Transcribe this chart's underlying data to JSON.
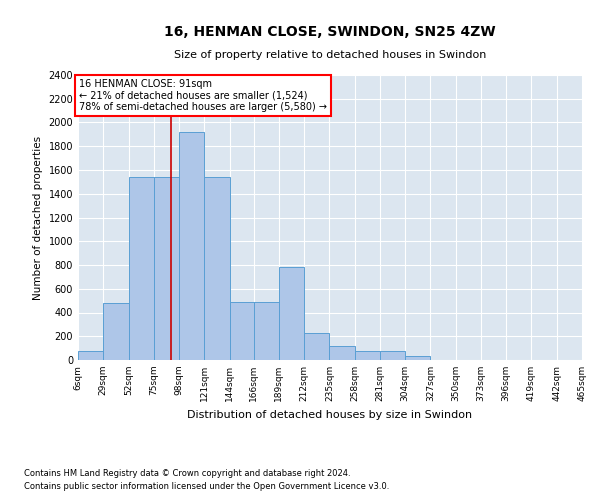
{
  "title": "16, HENMAN CLOSE, SWINDON, SN25 4ZW",
  "subtitle": "Size of property relative to detached houses in Swindon",
  "xlabel": "Distribution of detached houses by size in Swindon",
  "ylabel": "Number of detached properties",
  "footnote1": "Contains HM Land Registry data © Crown copyright and database right 2024.",
  "footnote2": "Contains public sector information licensed under the Open Government Licence v3.0.",
  "annotation_line1": "16 HENMAN CLOSE: 91sqm",
  "annotation_line2": "← 21% of detached houses are smaller (1,524)",
  "annotation_line3": "78% of semi-detached houses are larger (5,580) →",
  "property_size": 91,
  "bar_color": "#aec6e8",
  "bar_edge_color": "#5a9fd4",
  "vline_color": "#cc0000",
  "background_color": "#dce6f0",
  "bins": [
    6,
    29,
    52,
    75,
    98,
    121,
    144,
    166,
    189,
    212,
    235,
    258,
    281,
    304,
    327,
    350,
    373,
    396,
    419,
    442,
    465
  ],
  "counts": [
    75,
    480,
    1540,
    1540,
    1920,
    1540,
    490,
    490,
    780,
    230,
    120,
    75,
    75,
    30,
    0,
    0,
    0,
    0,
    0,
    0
  ],
  "ylim": [
    0,
    2400
  ],
  "yticks": [
    0,
    200,
    400,
    600,
    800,
    1000,
    1200,
    1400,
    1600,
    1800,
    2000,
    2200,
    2400
  ],
  "figsize": [
    6.0,
    5.0
  ],
  "dpi": 100
}
